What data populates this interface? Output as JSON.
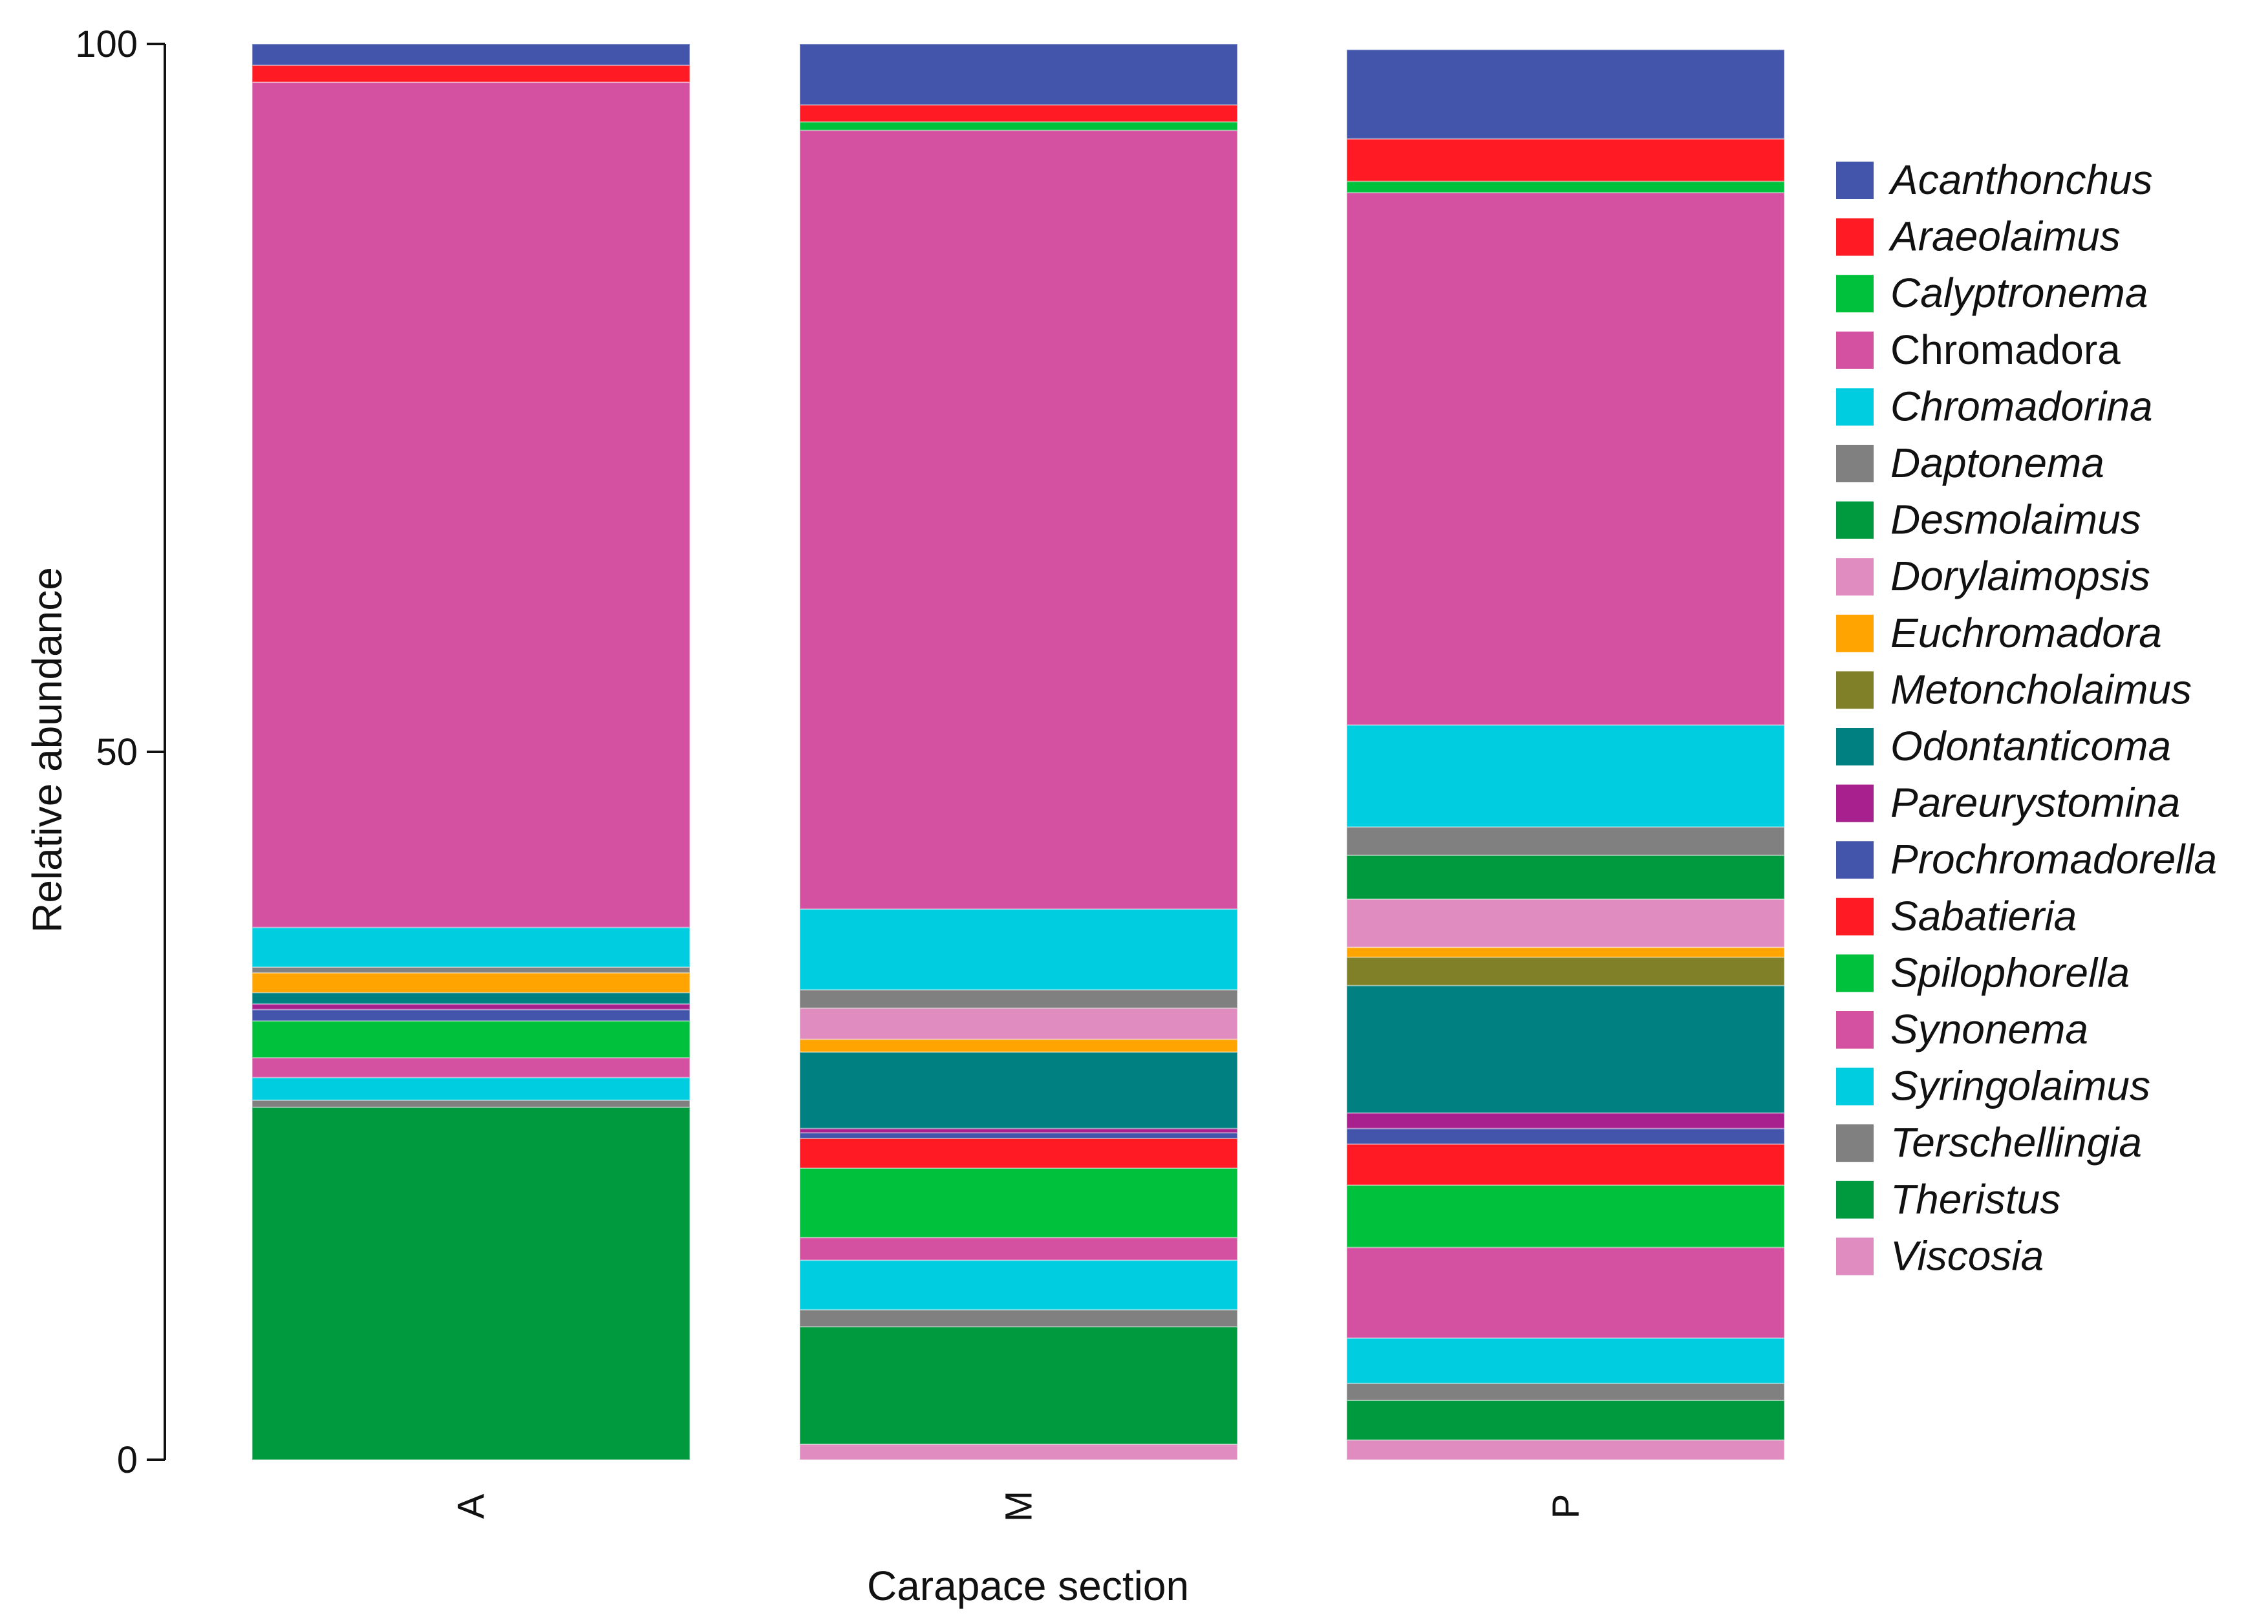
{
  "chart_data": {
    "type": "bar",
    "stacked": true,
    "categories": [
      "A",
      "M",
      "P"
    ],
    "xlabel": "Carapace section",
    "ylabel": "Relative abundance",
    "ylim": [
      0,
      100
    ],
    "yticks": [
      0,
      50,
      100
    ],
    "legend_position": "right",
    "series": [
      {
        "name": "Viscosia",
        "italic": true,
        "color": "#e08cc1",
        "values": [
          0,
          1.1,
          1.4
        ]
      },
      {
        "name": "Theristus",
        "italic": true,
        "color": "#009a3e",
        "values": [
          0,
          0,
          0
        ]
      },
      {
        "name": "Terschellingia",
        "italic": true,
        "color": "#808080",
        "values": [
          0,
          0,
          0
        ]
      },
      {
        "name": "Desmolaimus",
        "italic": true,
        "color": "#009a3e",
        "values": [
          24.9,
          8.3,
          2.8
        ]
      },
      {
        "name": "Daptonema",
        "italic": true,
        "color": "#808080",
        "values": [
          0.5,
          1.2,
          1.2
        ]
      },
      {
        "name": "Syringolaimus",
        "italic": true,
        "color": "#00cee0",
        "values": [
          1.6,
          3.5,
          3.2
        ]
      },
      {
        "name": "Synonema",
        "italic": true,
        "color": "#d451a1",
        "values": [
          1.4,
          1.6,
          6.4
        ]
      },
      {
        "name": "Spilophorella",
        "italic": true,
        "color": "#00c13b",
        "values": [
          2.6,
          4.9,
          4.4
        ]
      },
      {
        "name": "Sabatieria",
        "italic": true,
        "color": "#ff1a24",
        "values": [
          0,
          2.1,
          2.9
        ]
      },
      {
        "name": "Prochromadorella",
        "italic": true,
        "color": "#4355ab",
        "values": [
          0.8,
          0.4,
          1.1
        ]
      },
      {
        "name": "Pareurystomina",
        "italic": true,
        "color": "#a8208e",
        "values": [
          0.4,
          0.3,
          1.1
        ]
      },
      {
        "name": "Odontanticoma",
        "italic": true,
        "color": "#008080",
        "values": [
          0.8,
          5.4,
          9.0
        ]
      },
      {
        "name": "Metoncholaimus",
        "italic": true,
        "color": "#808029",
        "values": [
          0,
          0,
          2.0
        ]
      },
      {
        "name": "Euchromadora",
        "italic": true,
        "color": "#ffa400",
        "values": [
          1.4,
          0.9,
          0.7
        ]
      },
      {
        "name": "Dorylaimopsis",
        "italic": true,
        "color": "#e08cc1",
        "values": [
          0,
          2.2,
          3.4
        ]
      },
      {
        "name": "Terschellingia ",
        "italic": true,
        "color": "#808080",
        "values": [
          0.4,
          1.3,
          0
        ]
      },
      {
        "name": "Theristus ",
        "italic": true,
        "color": "#009a3e",
        "values": [
          0,
          0,
          3.1
        ]
      },
      {
        "name": "Daptonema ",
        "italic": true,
        "color": "#808080",
        "values": [
          0,
          0,
          2.0
        ]
      },
      {
        "name": "Chromadorina",
        "italic": true,
        "color": "#00cee0",
        "values": [
          2.8,
          5.7,
          7.2
        ]
      },
      {
        "name": "Chromadora",
        "italic": false,
        "color": "#d451a1",
        "values": [
          59.7,
          55.0,
          37.6
        ]
      },
      {
        "name": "Calyptronema",
        "italic": true,
        "color": "#00c13b",
        "values": [
          0,
          0.6,
          0.8
        ]
      },
      {
        "name": "Araeolaimus",
        "italic": true,
        "color": "#ff1a24",
        "values": [
          1.2,
          1.2,
          3.0
        ]
      },
      {
        "name": "Acanthonchus",
        "italic": true,
        "color": "#4355ab",
        "values": [
          1.5,
          4.3,
          6.3
        ]
      }
    ],
    "legend": [
      {
        "label": "Acanthonchus",
        "italic": true,
        "color": "#4355ab"
      },
      {
        "label": "Araeolaimus",
        "italic": true,
        "color": "#ff1a24"
      },
      {
        "label": "Calyptronema",
        "italic": true,
        "color": "#00c13b"
      },
      {
        "label": "Chromadora",
        "italic": false,
        "color": "#d451a1"
      },
      {
        "label": "Chromadorina",
        "italic": true,
        "color": "#00cee0"
      },
      {
        "label": "Daptonema",
        "italic": true,
        "color": "#808080"
      },
      {
        "label": "Desmolaimus",
        "italic": true,
        "color": "#009a3e"
      },
      {
        "label": "Dorylaimopsis",
        "italic": true,
        "color": "#e08cc1"
      },
      {
        "label": "Euchromadora",
        "italic": true,
        "color": "#ffa400"
      },
      {
        "label": "Metoncholaimus",
        "italic": true,
        "color": "#808029"
      },
      {
        "label": "Odontanticoma",
        "italic": true,
        "color": "#008080"
      },
      {
        "label": "Pareurystomina",
        "italic": true,
        "color": "#a8208e"
      },
      {
        "label": "Prochromadorella",
        "italic": true,
        "color": "#4355ab"
      },
      {
        "label": "Sabatieria",
        "italic": true,
        "color": "#ff1a24"
      },
      {
        "label": "Spilophorella",
        "italic": true,
        "color": "#00c13b"
      },
      {
        "label": "Synonema",
        "italic": true,
        "color": "#d451a1"
      },
      {
        "label": "Syringolaimus",
        "italic": true,
        "color": "#00cee0"
      },
      {
        "label": "Terschellingia",
        "italic": true,
        "color": "#808080"
      },
      {
        "label": "Theristus",
        "italic": true,
        "color": "#009a3e"
      },
      {
        "label": "Viscosia",
        "italic": true,
        "color": "#e08cc1"
      }
    ]
  }
}
